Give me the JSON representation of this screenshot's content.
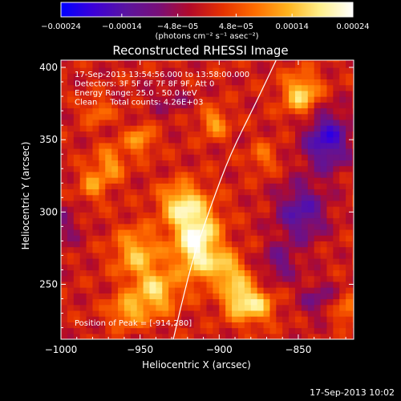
{
  "chart_data": {
    "type": "heatmap",
    "title": "Reconstructed RHESSI Image",
    "xlabel": "Heliocentric X (arcsec)",
    "ylabel": "Heliocentric Y (arcsec)",
    "xlim": [
      -1000,
      -815
    ],
    "ylim": [
      212,
      405
    ],
    "x_ticks": [
      -1000,
      -950,
      -900,
      -850
    ],
    "x_tick_labels": [
      "−1000",
      "−950",
      "−900",
      "−850"
    ],
    "y_ticks": [
      250,
      300,
      350,
      400
    ],
    "y_tick_labels": [
      "250",
      "300",
      "350",
      "400"
    ],
    "colorbar": {
      "min": -0.00024,
      "max": 0.00024,
      "ticks": [
        -0.00024,
        -0.00014,
        -4.8e-05,
        4.8e-05,
        0.00014,
        0.00024
      ],
      "tick_labels": [
        "−0.00024",
        "−0.00014",
        "−4.8e−05",
        "4.8e−05",
        "0.00014",
        "0.00024"
      ],
      "unit_label": "(photons cm⁻² s⁻¹ asec⁻²)",
      "stops": [
        "#0000ff",
        "#3c00d8",
        "#5a14a0",
        "#780f78",
        "#b40a28",
        "#e63200",
        "#ff6e00",
        "#ffb41e",
        "#fff08c",
        "#ffffff"
      ]
    },
    "annotations": [
      "17-Sep-2013 13:54:56.000 to 13:58:00.000",
      "Detectors: 3F 5F 6F 7F 8F 9F, Att 0",
      "Energy Range: 25.0 - 50.0 keV",
      "Clean     Total counts: 4.26E+03"
    ],
    "peak_label": "Position of Peak = [-914,280]",
    "peak": [
      -914,
      280
    ],
    "limb_curve": [
      [
        -929,
        212
      ],
      [
        -923,
        240
      ],
      [
        -916,
        270
      ],
      [
        -905,
        305
      ],
      [
        -893,
        340
      ],
      [
        -877,
        375
      ],
      [
        -864,
        405
      ]
    ],
    "blobs": [
      {
        "x": -914,
        "y": 280,
        "sx": 10,
        "sy": 18,
        "v": 0.00024
      },
      {
        "x": -925,
        "y": 306,
        "sx": 9,
        "sy": 10,
        "v": 0.00015
      },
      {
        "x": -952,
        "y": 272,
        "sx": 10,
        "sy": 12,
        "v": 0.00014
      },
      {
        "x": -940,
        "y": 245,
        "sx": 9,
        "sy": 11,
        "v": 0.00016
      },
      {
        "x": -958,
        "y": 232,
        "sx": 8,
        "sy": 8,
        "v": 0.00013
      },
      {
        "x": -980,
        "y": 320,
        "sx": 6,
        "sy": 9,
        "v": 0.0001
      },
      {
        "x": -968,
        "y": 334,
        "sx": 6,
        "sy": 9,
        "v": 0.00011
      },
      {
        "x": -950,
        "y": 350,
        "sx": 6,
        "sy": 7,
        "v": 0.00012
      },
      {
        "x": -977,
        "y": 370,
        "sx": 6,
        "sy": 6,
        "v": 9e-05
      },
      {
        "x": -888,
        "y": 242,
        "sx": 7,
        "sy": 11,
        "v": 0.00018
      },
      {
        "x": -875,
        "y": 235,
        "sx": 7,
        "sy": 8,
        "v": 0.00014
      },
      {
        "x": -896,
        "y": 262,
        "sx": 7,
        "sy": 7,
        "v": 0.00013
      },
      {
        "x": -903,
        "y": 362,
        "sx": 6,
        "sy": 7,
        "v": 0.00012
      },
      {
        "x": -848,
        "y": 382,
        "sx": 8,
        "sy": 10,
        "v": 0.00017
      },
      {
        "x": -872,
        "y": 338,
        "sx": 6,
        "sy": 7,
        "v": 8e-05
      },
      {
        "x": -832,
        "y": 350,
        "sx": 10,
        "sy": 14,
        "v": -0.00018
      },
      {
        "x": -848,
        "y": 300,
        "sx": 11,
        "sy": 14,
        "v": -0.00014
      },
      {
        "x": -862,
        "y": 265,
        "sx": 8,
        "sy": 9,
        "v": -9e-05
      },
      {
        "x": -998,
        "y": 290,
        "sx": 8,
        "sy": 12,
        "v": -6e-05
      },
      {
        "x": -932,
        "y": 378,
        "sx": 10,
        "sy": 8,
        "v": -5e-05
      },
      {
        "x": -820,
        "y": 232,
        "sx": 6,
        "sy": 6,
        "v": 0.0001
      },
      {
        "x": -838,
        "y": 240,
        "sx": 8,
        "sy": 9,
        "v": -8e-05
      }
    ]
  },
  "footer_date": "17-Sep-2013 10:02"
}
